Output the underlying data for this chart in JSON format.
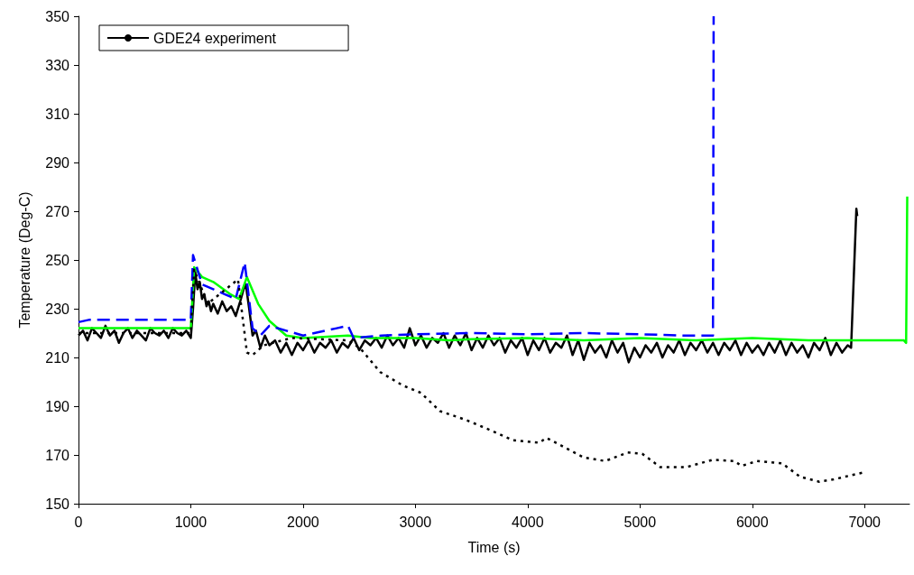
{
  "chart_data": {
    "type": "line",
    "xlabel": "Time (s)",
    "ylabel": "Temperature (Deg-C)",
    "xlim": [
      0,
      7400
    ],
    "ylim": [
      150,
      350
    ],
    "xticks": [
      0,
      1000,
      2000,
      3000,
      4000,
      5000,
      6000,
      7000
    ],
    "yticks": [
      150,
      170,
      190,
      210,
      230,
      250,
      270,
      290,
      310,
      330,
      350
    ],
    "grid": false,
    "legend": "top left",
    "marker": "none",
    "series": [
      {
        "name": "GDE24 experiment",
        "color": "#000000",
        "line_style": "solid",
        "x": [
          0,
          40,
          80,
          120,
          160,
          200,
          240,
          280,
          320,
          360,
          400,
          440,
          480,
          520,
          560,
          600,
          640,
          680,
          720,
          760,
          800,
          840,
          880,
          920,
          960,
          1000,
          1020,
          1040,
          1060,
          1080,
          1100,
          1120,
          1140,
          1160,
          1180,
          1200,
          1240,
          1280,
          1320,
          1360,
          1400,
          1440,
          1470,
          1490,
          1520,
          1550,
          1580,
          1620,
          1660,
          1700,
          1750,
          1800,
          1850,
          1900,
          1950,
          2000,
          2050,
          2100,
          2150,
          2200,
          2250,
          2300,
          2350,
          2400,
          2450,
          2500,
          2550,
          2600,
          2650,
          2700,
          2750,
          2800,
          2850,
          2900,
          2950,
          3000,
          3050,
          3100,
          3150,
          3200,
          3250,
          3300,
          3350,
          3400,
          3450,
          3500,
          3550,
          3600,
          3650,
          3700,
          3750,
          3800,
          3850,
          3900,
          3950,
          4000,
          4050,
          4100,
          4150,
          4200,
          4250,
          4300,
          4350,
          4400,
          4450,
          4500,
          4550,
          4600,
          4650,
          4700,
          4750,
          4800,
          4850,
          4900,
          4950,
          5000,
          5050,
          5100,
          5150,
          5200,
          5250,
          5300,
          5350,
          5400,
          5450,
          5500,
          5550,
          5600,
          5650,
          5700,
          5750,
          5800,
          5850,
          5900,
          5950,
          6000,
          6050,
          6100,
          6150,
          6200,
          6250,
          6300,
          6350,
          6400,
          6450,
          6500,
          6550,
          6600,
          6650,
          6700,
          6750,
          6800,
          6850,
          6880,
          6927,
          6935
        ],
        "values": [
          219,
          221,
          217,
          222,
          220,
          218,
          223,
          219,
          221,
          216,
          220,
          222,
          218,
          221,
          219,
          217,
          222,
          220,
          219,
          221,
          218,
          222,
          220,
          219,
          221,
          218,
          230,
          245,
          238,
          241,
          234,
          236,
          231,
          233,
          229,
          232,
          228,
          233,
          229,
          231,
          227,
          233,
          238,
          240,
          230,
          219,
          221,
          214,
          219,
          215,
          217,
          212,
          216,
          211,
          216,
          213,
          217,
          212,
          216,
          214,
          217,
          212,
          216,
          214,
          218,
          213,
          217,
          215,
          218,
          214,
          219,
          215,
          218,
          214,
          222,
          215,
          219,
          214,
          218,
          216,
          220,
          214,
          219,
          215,
          220,
          213,
          218,
          214,
          219,
          215,
          218,
          212,
          217,
          214,
          218,
          211,
          217,
          213,
          218,
          212,
          216,
          214,
          219,
          211,
          217,
          209,
          216,
          212,
          215,
          210,
          217,
          212,
          216,
          208,
          214,
          210,
          215,
          212,
          216,
          210,
          215,
          212,
          217,
          211,
          216,
          213,
          217,
          212,
          216,
          211,
          216,
          213,
          217,
          211,
          216,
          212,
          215,
          211,
          216,
          212,
          217,
          211,
          216,
          212,
          215,
          210,
          216,
          213,
          218,
          211,
          216,
          212,
          215,
          214,
          271,
          268
        ]
      },
      {
        "color": "#00ff00",
        "line_style": "solid",
        "x": [
          0,
          1000,
          1030,
          1100,
          1200,
          1350,
          1430,
          1500,
          1600,
          1700,
          1850,
          2000,
          2400,
          2600,
          3000,
          3300,
          3500,
          4000,
          4500,
          5000,
          5500,
          6000,
          6500,
          7000,
          7350,
          7370,
          7380
        ],
        "values": [
          222,
          222,
          247,
          243,
          241,
          236,
          234,
          243,
          232,
          225,
          219,
          218,
          219,
          218,
          218,
          217,
          217.5,
          218,
          217,
          218,
          217,
          218,
          217,
          217,
          217,
          216,
          276
        ]
      },
      {
        "color": "#0000ff",
        "line_style": "dashed",
        "x": [
          0,
          100,
          1000,
          1020,
          1100,
          1300,
          1400,
          1480,
          1550,
          1620,
          1700,
          2000,
          2300,
          2400,
          2450,
          2700,
          3000,
          3500,
          4000,
          4500,
          5000,
          5400,
          5650,
          5656
        ],
        "values": [
          224.5,
          225.5,
          225.5,
          252,
          240,
          236,
          234,
          249,
          222,
          219,
          223,
          219,
          222,
          223,
          218,
          219,
          219.5,
          220,
          219.5,
          220,
          219.5,
          219,
          219,
          350
        ]
      },
      {
        "color": "#000000",
        "line_style": "dotted",
        "x": [
          0,
          1000,
          1030,
          1150,
          1420,
          1500,
          1550,
          1650,
          1900,
          2400,
          2510,
          2687,
          2888,
          3049,
          3218,
          3443,
          3677,
          3870,
          4103,
          4167,
          4232,
          4497,
          4690,
          4891,
          5020,
          5181,
          5414,
          5647,
          5840,
          5905,
          6042,
          6267,
          6428,
          6597,
          6726,
          7007
        ],
        "values": [
          220,
          220,
          246,
          232,
          242,
          212,
          211,
          215,
          218,
          217,
          213.7,
          204,
          198.5,
          195.5,
          188,
          184.5,
          180,
          176,
          175,
          177,
          175.5,
          169,
          167.5,
          171,
          170.5,
          165,
          165,
          168,
          167.5,
          165.5,
          167.5,
          166.5,
          161,
          159,
          160,
          163
        ]
      }
    ]
  }
}
